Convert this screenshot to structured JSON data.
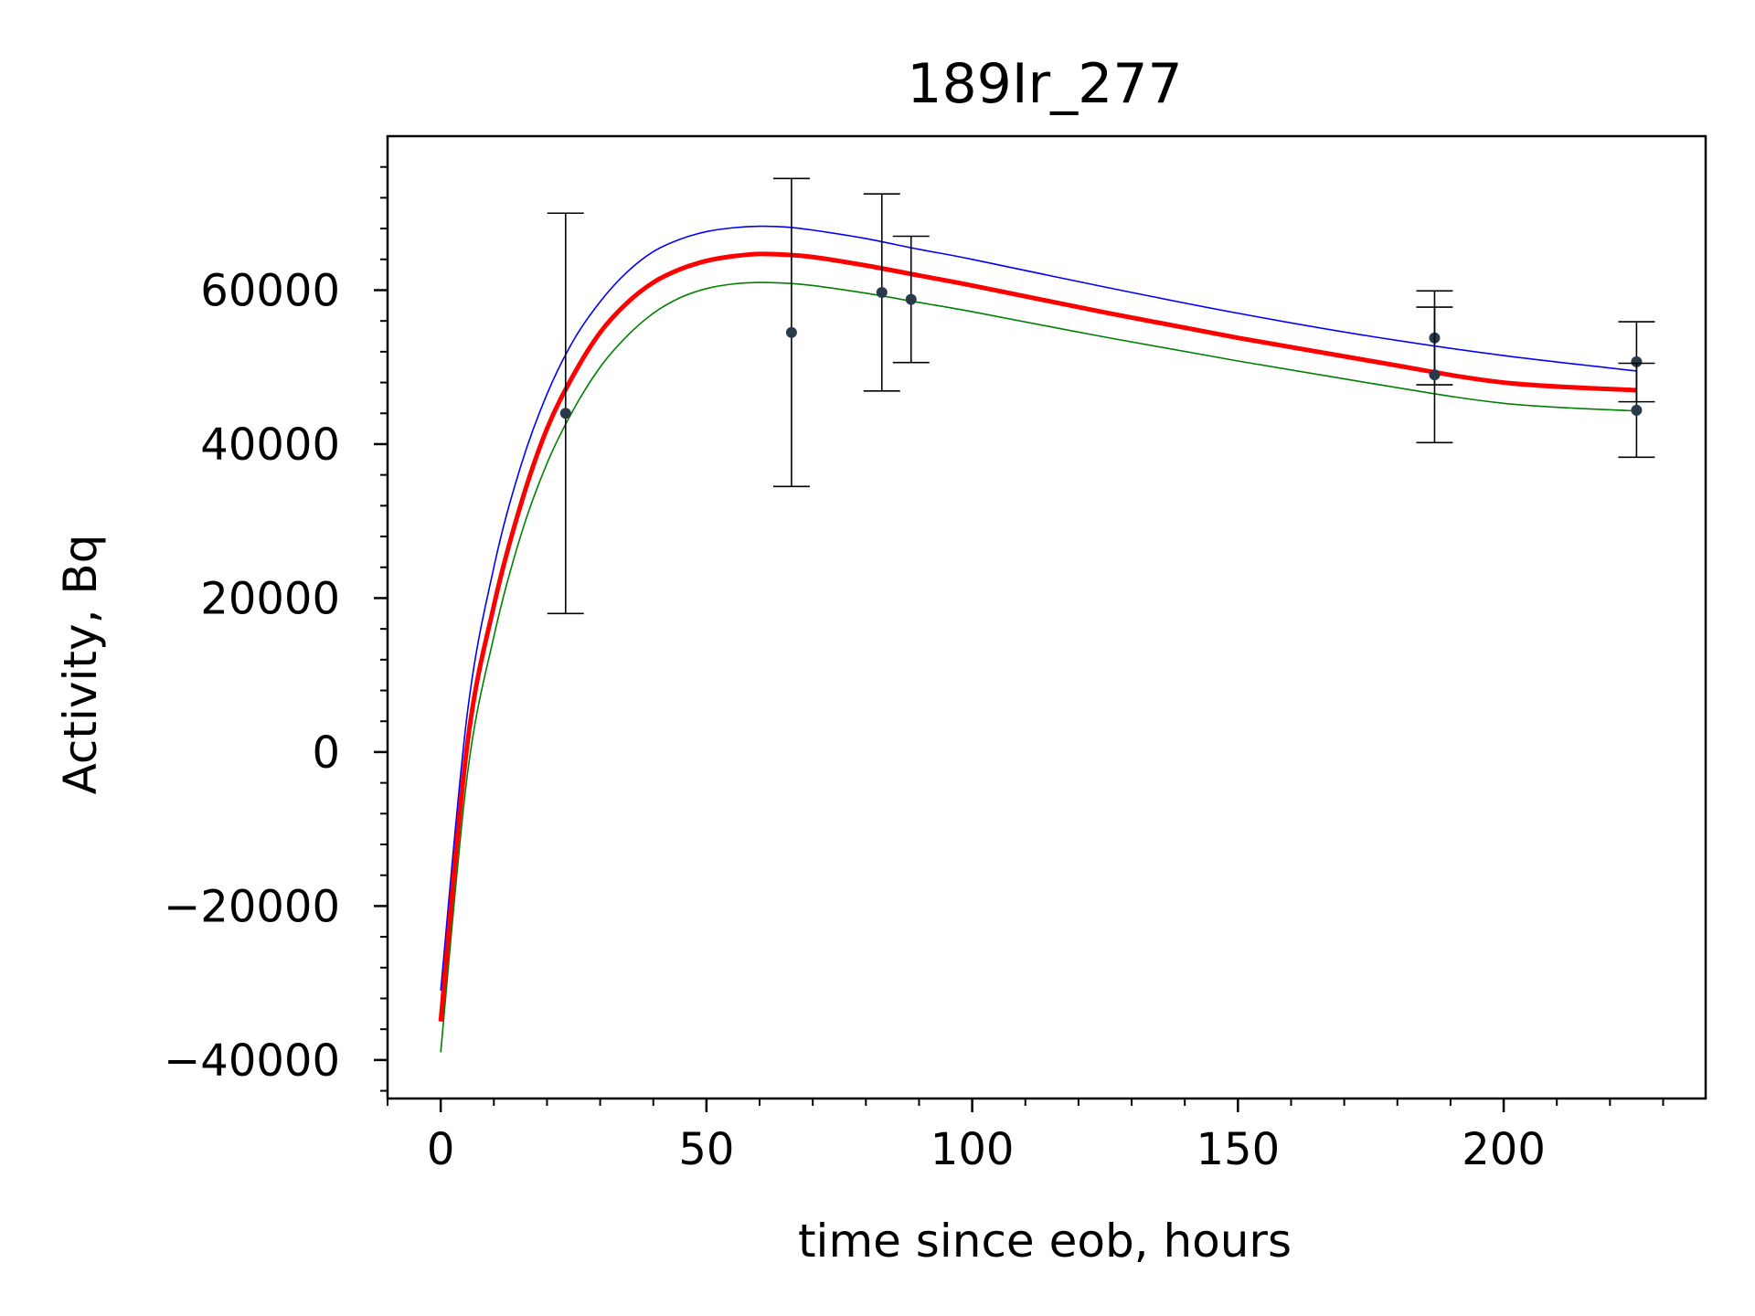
{
  "chart_data": {
    "type": "line",
    "title": "189Ir_277",
    "xlabel": "time since eob, hours",
    "ylabel": "Activity, Bq",
    "xlim": [
      -10,
      238
    ],
    "ylim": [
      -45000,
      80000
    ],
    "x_ticks": [
      0,
      50,
      100,
      150,
      200
    ],
    "x_tick_labels": [
      "0",
      "50",
      "100",
      "150",
      "200"
    ],
    "y_ticks": [
      -40000,
      -20000,
      0,
      20000,
      40000,
      60000
    ],
    "y_tick_labels": [
      "−40000",
      "−20000",
      "0",
      "20000",
      "40000",
      "60000"
    ],
    "grid": false,
    "series": [
      {
        "role": "fit",
        "color": "#ff0000",
        "x": [
          0,
          5,
          10,
          15,
          20,
          25,
          30,
          35,
          40,
          45,
          50,
          55,
          60,
          65,
          70,
          80,
          90,
          100,
          125,
          150,
          175,
          200,
          225
        ],
        "y": [
          -35000,
          1000,
          19000,
          32000,
          42000,
          49000,
          54500,
          58300,
          61000,
          62700,
          63800,
          64400,
          64700,
          64600,
          64300,
          63200,
          61900,
          60600,
          57100,
          53800,
          50800,
          48000,
          47000
        ]
      },
      {
        "role": "upper bound",
        "color": "#0000ff",
        "x": [
          0,
          5,
          10,
          15,
          20,
          25,
          30,
          35,
          40,
          45,
          50,
          55,
          60,
          65,
          70,
          80,
          90,
          100,
          125,
          150,
          175,
          200,
          225
        ],
        "y": [
          -31000,
          5000,
          24000,
          37000,
          46500,
          53500,
          58500,
          62300,
          65000,
          66600,
          67600,
          68100,
          68300,
          68200,
          67800,
          66700,
          65300,
          64000,
          60400,
          57000,
          54000,
          51500,
          49500
        ]
      },
      {
        "role": "lower bound",
        "color": "#008000",
        "x": [
          0,
          5,
          10,
          15,
          20,
          25,
          30,
          35,
          40,
          45,
          50,
          55,
          60,
          65,
          70,
          80,
          90,
          100,
          125,
          150,
          175,
          200,
          225
        ],
        "y": [
          -39000,
          -3000,
          15000,
          28000,
          37500,
          44500,
          50000,
          54000,
          57000,
          59000,
          60200,
          60800,
          61000,
          60900,
          60600,
          59600,
          58400,
          57200,
          53900,
          50800,
          47900,
          45300,
          44300
        ]
      }
    ],
    "points": {
      "color": "#2b3a4a",
      "x": [
        23.5,
        66,
        83,
        88.5,
        187,
        187,
        225,
        225
      ],
      "y": [
        44000,
        54500,
        59700,
        58800,
        53800,
        49000,
        50700,
        44400
      ],
      "yerr": [
        26000,
        20000,
        12800,
        8200,
        6100,
        8800,
        5200,
        6100
      ]
    }
  }
}
